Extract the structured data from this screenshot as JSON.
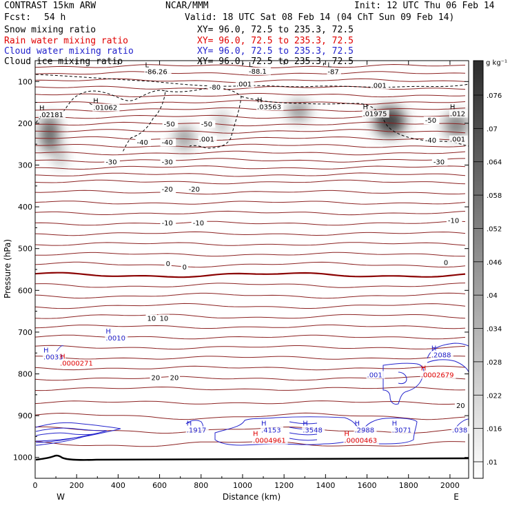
{
  "header": {
    "title": "CONTRAST 15km ARW",
    "center": "NCAR/MMM",
    "init": "Init: 12 UTC Thu 06 Feb 14",
    "fcst_label": "Fcst:",
    "fcst_value": "54 h",
    "valid": "Valid: 18 UTC Sat 08 Feb 14 (04 ChT Sun 09 Feb 14)"
  },
  "fields": [
    {
      "name": "Snow mixing ratio",
      "xy": "XY=  96.0, 72.5 to 235.3, 72.5",
      "color": "#000000"
    },
    {
      "name": "Rain water mixing ratio",
      "xy": "XY=  96.0, 72.5 to 235.3, 72.5",
      "color": "#e00000"
    },
    {
      "name": "Cloud water mixing ratio",
      "xy": "XY=  96.0, 72.5 to 235.3, 72.5",
      "color": "#2222cc"
    },
    {
      "name": "Cloud ice mixing ratio",
      "xy": "XY=  96.0, 72.5 to 235.3, 72.5",
      "color": "#000000"
    }
  ],
  "colorbar": {
    "unit": "g kg⁻¹",
    "ticks": [
      ".076",
      ".07",
      ".064",
      ".058",
      ".052",
      ".046",
      ".04",
      ".034",
      ".028",
      ".022",
      ".016",
      ".01"
    ]
  },
  "chart_data": {
    "type": "heatmap",
    "xlabel": "Distance (km)",
    "ylabel": "Pressure (hPa)",
    "xlim": [
      0,
      2090
    ],
    "ylim": [
      1050,
      50
    ],
    "x_ticks": [
      0,
      200,
      400,
      600,
      800,
      1000,
      1200,
      1400,
      1600,
      1800,
      2000
    ],
    "y_ticks": [
      100,
      200,
      300,
      400,
      500,
      600,
      700,
      800,
      900,
      1000
    ],
    "x_end_labels": {
      "left": "W",
      "right": "E"
    },
    "temperature_contours": [
      {
        "value": "-80",
        "x": 840,
        "p": 118
      },
      {
        "value": "-50",
        "x": 620,
        "p": 206
      },
      {
        "value": "-50",
        "x": 800,
        "p": 206
      },
      {
        "value": "-50",
        "x": 1880,
        "p": 197
      },
      {
        "value": "-40",
        "x": 490,
        "p": 250
      },
      {
        "value": "-40",
        "x": 610,
        "p": 250
      },
      {
        "value": "-40",
        "x": 1880,
        "p": 245
      },
      {
        "value": "-30",
        "x": 340,
        "p": 297
      },
      {
        "value": "-30",
        "x": 610,
        "p": 297
      },
      {
        "value": "-30",
        "x": 1920,
        "p": 297
      },
      {
        "value": "-20",
        "x": 610,
        "p": 362
      },
      {
        "value": "-20",
        "x": 740,
        "p": 362
      },
      {
        "value": "-10",
        "x": 610,
        "p": 443
      },
      {
        "value": "-10",
        "x": 760,
        "p": 443
      },
      {
        "value": "-10",
        "x": 1990,
        "p": 437
      },
      {
        "value": "0",
        "x": 630,
        "p": 540
      },
      {
        "value": "0",
        "x": 710,
        "p": 548
      },
      {
        "value": "0",
        "x": 1970,
        "p": 538
      },
      {
        "value": "10",
        "x": 540,
        "p": 671
      },
      {
        "value": "10",
        "x": 600,
        "p": 671
      },
      {
        "value": "20",
        "x": 560,
        "p": 813
      },
      {
        "value": "20",
        "x": 650,
        "p": 813
      },
      {
        "value": "20",
        "x": 2030,
        "p": 880
      }
    ],
    "ice_labels": [
      {
        "type": "L",
        "value": "-86.26",
        "x": 530,
        "p": 82
      },
      {
        "type": "L",
        "value": "-88.1",
        "x": 1030,
        "p": 81
      },
      {
        "type": "L",
        "value": "-87",
        "x": 1410,
        "p": 82
      },
      {
        "type": "",
        "value": ".001",
        "x": 970,
        "p": 112
      },
      {
        "type": "",
        "value": ".001",
        "x": 1620,
        "p": 115
      },
      {
        "type": "H",
        "value": ".01062",
        "x": 280,
        "p": 168
      },
      {
        "type": "H",
        "value": ".03563",
        "x": 1070,
        "p": 166
      },
      {
        "type": "H",
        "value": ".01975",
        "x": 1580,
        "p": 183
      },
      {
        "type": "H",
        "value": ".012",
        "x": 2000,
        "p": 183
      },
      {
        "type": "H",
        "value": ".02181",
        "x": 20,
        "p": 185
      },
      {
        "type": "",
        "value": ".001",
        "x": 790,
        "p": 244
      },
      {
        "type": "",
        "value": ".001",
        "x": 2000,
        "p": 244
      }
    ],
    "cloud_water_labels": [
      {
        "type": "H",
        "value": ".0010",
        "x": 340,
        "p": 720
      },
      {
        "type": "H",
        "value": ".0033",
        "x": 40,
        "p": 765
      },
      {
        "type": "H",
        "value": ".2088",
        "x": 1910,
        "p": 760
      },
      {
        "type": "",
        "value": ".001",
        "x": 1600,
        "p": 808
      },
      {
        "type": "H",
        "value": ".1917",
        "x": 730,
        "p": 940
      },
      {
        "type": "H",
        "value": ".4153",
        "x": 1090,
        "p": 940
      },
      {
        "type": "H",
        "value": ".3548",
        "x": 1290,
        "p": 940
      },
      {
        "type": "H",
        "value": ".2988",
        "x": 1540,
        "p": 940
      },
      {
        "type": "H",
        "value": ".3071",
        "x": 1720,
        "p": 940
      },
      {
        "type": "",
        "value": ".038",
        "x": 2010,
        "p": 940
      }
    ],
    "rain_labels": [
      {
        "type": "H",
        "value": ".0000271",
        "x": 120,
        "p": 780
      },
      {
        "type": "H",
        "value": ".0002679",
        "x": 1860,
        "p": 808
      },
      {
        "type": "H",
        "value": ".0004961",
        "x": 1050,
        "p": 965
      },
      {
        "type": "H",
        "value": ".0000463",
        "x": 1490,
        "p": 965
      }
    ],
    "ice_blobs": [
      {
        "x": 70,
        "p": 225,
        "rx": 45,
        "rp": 45,
        "intensity": 0.75
      },
      {
        "x": 120,
        "p": 280,
        "rx": 25,
        "rp": 25,
        "intensity": 0.4
      },
      {
        "x": 720,
        "p": 235,
        "rx": 50,
        "rp": 30,
        "intensity": 0.45
      },
      {
        "x": 900,
        "p": 200,
        "rx": 30,
        "rp": 30,
        "intensity": 0.35
      },
      {
        "x": 1270,
        "p": 170,
        "rx": 55,
        "rp": 25,
        "intensity": 0.5
      },
      {
        "x": 1710,
        "p": 195,
        "rx": 75,
        "rp": 35,
        "intensity": 0.9
      },
      {
        "x": 2030,
        "p": 205,
        "rx": 60,
        "rp": 30,
        "intensity": 0.6
      }
    ]
  }
}
